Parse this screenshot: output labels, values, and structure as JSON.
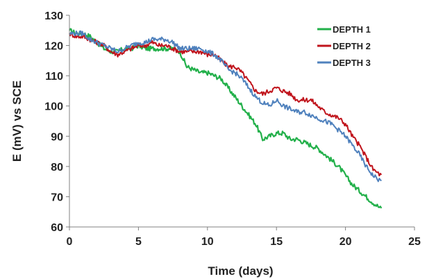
{
  "chart_data": {
    "type": "line",
    "title": "",
    "xlabel": "Time (days)",
    "ylabel": "E (mV) vs SCE",
    "xlim": [
      0,
      25
    ],
    "ylim": [
      60,
      130
    ],
    "xticks": [
      "0",
      "5",
      "10",
      "15",
      "20",
      "25"
    ],
    "yticks": [
      "60",
      "70",
      "80",
      "90",
      "100",
      "110",
      "120",
      "130"
    ],
    "grid": false,
    "legend_position": "top-right",
    "series": [
      {
        "name": "DEPTH 1",
        "color": "#22b04a",
        "x": [
          0,
          0.5,
          1,
          1.5,
          2,
          2.5,
          3,
          3.5,
          4,
          4.5,
          5,
          5.5,
          6,
          6.5,
          7,
          7.5,
          8,
          8.5,
          9,
          9.5,
          10,
          10.5,
          11,
          11.5,
          12,
          12.5,
          13,
          13.5,
          14,
          14.5,
          15,
          15.5,
          16,
          16.5,
          17,
          17.5,
          18,
          18.5,
          19,
          19.5,
          20,
          20.5,
          21,
          21.5,
          22,
          22.6
        ],
        "y": [
          125,
          124,
          124,
          123,
          121,
          119,
          118,
          118,
          119,
          119,
          120,
          119,
          119,
          119,
          119,
          119,
          118,
          113,
          112,
          111,
          111,
          110,
          109,
          106,
          103,
          100,
          97,
          94,
          89,
          90,
          91,
          91,
          89,
          89,
          88,
          87,
          86,
          84,
          82,
          80,
          77,
          74,
          72,
          70,
          68,
          66
        ]
      },
      {
        "name": "DEPTH 2",
        "color": "#c0141c",
        "x": [
          0,
          0.5,
          1,
          1.5,
          2,
          2.5,
          3,
          3.5,
          4,
          4.5,
          5,
          5.5,
          6,
          6.5,
          7,
          7.5,
          8,
          8.5,
          9,
          9.5,
          10,
          10.5,
          11,
          11.5,
          12,
          12.5,
          13,
          13.5,
          14,
          14.5,
          15,
          15.5,
          16,
          16.5,
          17,
          17.5,
          18,
          18.5,
          19,
          19.5,
          20,
          20.5,
          21,
          21.5,
          22,
          22.6
        ],
        "y": [
          124,
          123,
          123,
          122,
          121,
          120,
          118,
          117,
          118,
          119,
          120,
          120,
          121,
          120,
          120,
          119,
          118,
          118,
          118,
          118,
          117,
          117,
          115,
          113,
          113,
          111,
          108,
          105,
          104,
          105,
          106,
          105,
          104,
          102,
          102,
          102,
          100,
          98,
          97,
          96,
          94,
          90,
          87,
          83,
          79,
          77
        ]
      },
      {
        "name": "DEPTH 3",
        "color": "#4f81bd",
        "x": [
          0,
          0.5,
          1,
          1.5,
          2,
          2.5,
          3,
          3.5,
          4,
          4.5,
          5,
          5.5,
          6,
          6.5,
          7,
          7.5,
          8,
          8.5,
          9,
          9.5,
          10,
          10.5,
          11,
          11.5,
          12,
          12.5,
          13,
          13.5,
          14,
          14.5,
          15,
          15.5,
          16,
          16.5,
          17,
          17.5,
          18,
          18.5,
          19,
          19.5,
          20,
          20.5,
          21,
          21.5,
          22,
          22.6
        ],
        "y": [
          124,
          124,
          124,
          122,
          121,
          120,
          119,
          118,
          119,
          120,
          121,
          121,
          122,
          122,
          122,
          121,
          119,
          119,
          119,
          119,
          118,
          117,
          115,
          112,
          111,
          109,
          106,
          103,
          101,
          100,
          102,
          100,
          99,
          98,
          98,
          97,
          96,
          95,
          94,
          92,
          90,
          87,
          84,
          80,
          77,
          75
        ]
      }
    ]
  }
}
